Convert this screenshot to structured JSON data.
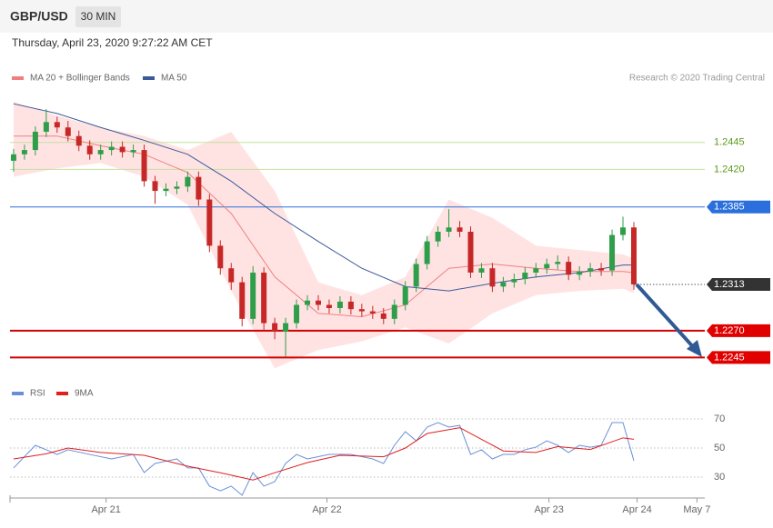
{
  "header": {
    "symbol": "GBP/USD",
    "interval": "30 MIN",
    "timestamp": "Thursday, April 23, 2020 9:27:22 AM CET"
  },
  "chart_data": [
    {
      "type": "candlestick",
      "credit": "Research © 2020 Trading Central",
      "up_color": "#2e9e4a",
      "down_color": "#c62828",
      "ylim": [
        1.2231,
        1.2493
      ],
      "open": [
        1.2428,
        1.2434,
        1.2438,
        1.2455,
        1.2464,
        1.2459,
        1.2451,
        1.2442,
        1.2434,
        1.2438,
        1.2441,
        1.2436,
        1.2438,
        1.2409,
        1.24,
        1.2402,
        1.2404,
        1.2413,
        1.2392,
        1.2349,
        1.2328,
        1.2315,
        1.2281,
        1.2324,
        1.2277,
        1.2269,
        1.2277,
        1.2294,
        1.2298,
        1.2294,
        1.2291,
        1.2297,
        1.229,
        1.2288,
        1.2286,
        1.2281,
        1.2294,
        1.2311,
        1.2332,
        1.2353,
        1.2362,
        1.2366,
        1.2362,
        1.2324,
        1.2328,
        1.2311,
        1.2315,
        1.2318,
        1.2324,
        1.2328,
        1.2332,
        1.2334,
        1.2322,
        1.2325,
        1.2328,
        1.2326,
        1.2359,
        1.2366
      ],
      "high": [
        1.2439,
        1.2443,
        1.246,
        1.2476,
        1.2469,
        1.2465,
        1.2456,
        1.2447,
        1.2443,
        1.2446,
        1.2446,
        1.2443,
        1.2443,
        1.2414,
        1.2407,
        1.2409,
        1.2418,
        1.2418,
        1.2397,
        1.2354,
        1.2333,
        1.232,
        1.233,
        1.2329,
        1.2282,
        1.2282,
        1.2299,
        1.2303,
        1.2303,
        1.2299,
        1.2302,
        1.2302,
        1.2295,
        1.2293,
        1.2291,
        1.2299,
        1.2316,
        1.2337,
        1.2358,
        1.2367,
        1.2383,
        1.2372,
        1.2367,
        1.2333,
        1.2333,
        1.232,
        1.2323,
        1.2329,
        1.2333,
        1.2337,
        1.234,
        1.2339,
        1.233,
        1.2333,
        1.2333,
        1.2364,
        1.2376,
        1.2371
      ],
      "low": [
        1.2418,
        1.2429,
        1.2433,
        1.245,
        1.2454,
        1.2446,
        1.2437,
        1.2429,
        1.2429,
        1.2433,
        1.2431,
        1.2431,
        1.2404,
        1.2388,
        1.2395,
        1.2397,
        1.2399,
        1.2386,
        1.2343,
        1.2322,
        1.2308,
        1.2274,
        1.2276,
        1.227,
        1.2262,
        1.2246,
        1.2272,
        1.2289,
        1.2289,
        1.2286,
        1.2286,
        1.2285,
        1.2283,
        1.2281,
        1.2276,
        1.2276,
        1.2289,
        1.2306,
        1.2327,
        1.2348,
        1.2357,
        1.2357,
        1.2319,
        1.2319,
        1.2306,
        1.2306,
        1.231,
        1.2313,
        1.2319,
        1.2323,
        1.2327,
        1.2317,
        1.2317,
        1.232,
        1.2321,
        1.2321,
        1.2354,
        1.2308
      ],
      "close": [
        1.2434,
        1.2438,
        1.2455,
        1.2464,
        1.2459,
        1.2451,
        1.2442,
        1.2434,
        1.2438,
        1.2441,
        1.2436,
        1.2438,
        1.2409,
        1.24,
        1.2402,
        1.2404,
        1.2413,
        1.2392,
        1.2349,
        1.2328,
        1.2315,
        1.2281,
        1.2324,
        1.2277,
        1.2269,
        1.2277,
        1.2294,
        1.2298,
        1.2294,
        1.2291,
        1.2297,
        1.229,
        1.2288,
        1.2286,
        1.2281,
        1.2294,
        1.2311,
        1.2332,
        1.2353,
        1.2362,
        1.2366,
        1.2362,
        1.2324,
        1.2328,
        1.2311,
        1.2315,
        1.2318,
        1.2324,
        1.2328,
        1.2332,
        1.2334,
        1.2322,
        1.2325,
        1.2328,
        1.2326,
        1.2359,
        1.2366,
        1.2313
      ],
      "series": [
        {
          "name": "MA 20 + Bollinger Bands",
          "color": "#f08080",
          "band_color": "#ffdada",
          "x": [
            0,
            4,
            8,
            12,
            16,
            20,
            24,
            28,
            32,
            36,
            40,
            44,
            48,
            52,
            56,
            57
          ],
          "values": [
            1.2451,
            1.2451,
            1.2442,
            1.2434,
            1.2417,
            1.2379,
            1.232,
            1.2286,
            1.2283,
            1.2294,
            1.2328,
            1.2332,
            1.2328,
            1.2325,
            1.2325,
            1.2324
          ],
          "upper": [
            1.2483,
            1.247,
            1.2459,
            1.2451,
            1.2438,
            1.2455,
            1.24,
            1.2315,
            1.2303,
            1.232,
            1.2392,
            1.2375,
            1.2349,
            1.2345,
            1.2341,
            1.2337
          ],
          "lower": [
            1.2413,
            1.2421,
            1.2426,
            1.2413,
            1.2387,
            1.2307,
            1.2235,
            1.2252,
            1.226,
            1.2273,
            1.2258,
            1.2286,
            1.2303,
            1.2307,
            1.2309,
            1.2305
          ]
        },
        {
          "name": "MA 50",
          "color": "#3a5a9a",
          "x": [
            0,
            4,
            8,
            12,
            16,
            20,
            24,
            28,
            32,
            36,
            40,
            44,
            48,
            52,
            56,
            57
          ],
          "values": [
            1.2481,
            1.2472,
            1.2459,
            1.2447,
            1.2434,
            1.2409,
            1.2379,
            1.2353,
            1.2328,
            1.2311,
            1.2307,
            1.2314,
            1.232,
            1.2324,
            1.2331,
            1.2331
          ]
        }
      ],
      "levels": [
        {
          "value": 1.2445,
          "color": "#5a9a1a",
          "line_color": "#c5e0a0",
          "style": "solid",
          "boxed": false
        },
        {
          "value": 1.242,
          "label": "1.2420",
          "color": "#5a9a1a",
          "line_color": "#c5e0a0",
          "style": "solid",
          "boxed": false
        },
        {
          "value": 1.2385,
          "color": "#2a6fdb",
          "line_color": "#2a6fdb",
          "style": "solid",
          "boxed": true
        },
        {
          "value": 1.2313,
          "color": "#333333",
          "line_color": "#555555",
          "style": "dotted",
          "boxed": true
        },
        {
          "value": 1.227,
          "label": "1.2270",
          "color": "#e00000",
          "line_color": "#d00000",
          "style": "thick",
          "boxed": true
        },
        {
          "value": 1.2245,
          "color": "#e00000",
          "line_color": "#d00000",
          "style": "thick",
          "boxed": true
        }
      ]
    },
    {
      "type": "line",
      "ylim": [
        17.5,
        76.9
      ],
      "yticks": [
        30,
        50,
        70
      ],
      "xlim": [
        -0.33,
        63.52
      ],
      "xticks": [
        {
          "value": 8.5,
          "label": "Apr 21"
        },
        {
          "value": 28.8,
          "label": "Apr 22"
        },
        {
          "value": 49.2,
          "label": "Apr 23"
        },
        {
          "value": 57.3,
          "label": "Apr 24"
        },
        {
          "value": 62.8,
          "label": "May 7"
        }
      ],
      "series": [
        {
          "name": "RSI",
          "color": "#6a8fd8",
          "x": [
            0,
            2,
            3,
            4,
            5,
            7,
            9,
            11,
            12,
            13,
            15,
            16,
            17,
            18,
            19,
            20,
            21,
            22,
            23,
            24,
            25,
            26,
            27,
            29,
            31,
            33,
            34,
            35,
            36,
            37,
            38,
            39,
            40,
            41,
            42,
            43,
            44,
            45,
            46,
            47,
            48,
            49,
            50,
            51,
            52,
            53,
            54,
            55,
            56,
            57
          ],
          "values": [
            36.3,
            51.9,
            48.8,
            45.6,
            48.8,
            45.6,
            42.5,
            45.6,
            33.1,
            39.4,
            42.5,
            36.3,
            36.3,
            23.8,
            20.6,
            23.8,
            17.5,
            33.1,
            23.8,
            26.9,
            39.4,
            45.6,
            42.5,
            45.6,
            45.6,
            42.5,
            39.4,
            51.9,
            61.3,
            55,
            64.4,
            67.5,
            64.4,
            65.6,
            45.6,
            48.8,
            42.5,
            45.6,
            45.6,
            48.8,
            50.6,
            55,
            51.9,
            46.9,
            51.9,
            50.6,
            51.9,
            67.5,
            67.5,
            41.3
          ]
        },
        {
          "name": "9MA",
          "color": "#e02020",
          "x": [
            0,
            3,
            5,
            8,
            12,
            16,
            19,
            22,
            24,
            27,
            30,
            34,
            36,
            38,
            41,
            43,
            45,
            48,
            50,
            53,
            56,
            57
          ],
          "values": [
            42.5,
            46,
            50,
            47,
            45,
            37.5,
            33,
            28,
            33,
            40,
            45,
            44,
            50,
            60,
            64,
            56,
            48,
            47,
            51,
            49,
            57,
            56
          ]
        }
      ]
    }
  ]
}
